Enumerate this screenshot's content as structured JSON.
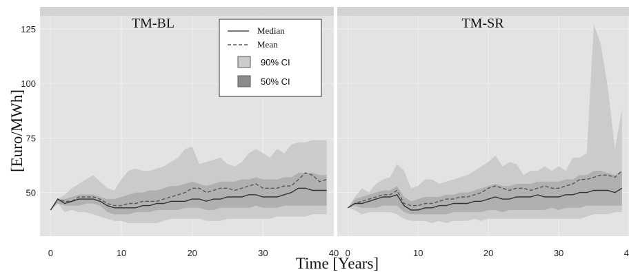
{
  "chart_data": {
    "type": "area",
    "xlabel": "Time [Years]",
    "ylabel": "[Euro/MWh]",
    "x_ticks": [
      0,
      10,
      20,
      30,
      40
    ],
    "x_tick_labels": [
      "0",
      "10",
      "20",
      "30",
      "40"
    ],
    "y_ticks": [
      50,
      75,
      100,
      125
    ],
    "xlim": [
      -1.5,
      40
    ],
    "ylim": [
      30,
      131
    ],
    "legend": {
      "placement": "top-right of left panel",
      "entries": [
        {
          "label": "Median",
          "style": "solid-line"
        },
        {
          "label": "Mean",
          "style": "dashed-line"
        },
        {
          "label": "90% CI",
          "style": "light-fill"
        },
        {
          "label": "50% CI",
          "style": "dark-fill"
        }
      ]
    },
    "colors": {
      "panel_background": "#e3e3e3",
      "strip_background": "#d3d3d3",
      "ci90_fill": "#cbcbcb",
      "ci50_fill": "#b0b0b0",
      "median_line": "#333333",
      "mean_line": "#555555"
    },
    "panels": [
      {
        "title": "TM-BL",
        "x": [
          0,
          1,
          2,
          3,
          4,
          5,
          6,
          7,
          8,
          9,
          10,
          11,
          12,
          13,
          14,
          15,
          16,
          17,
          18,
          19,
          20,
          21,
          22,
          23,
          24,
          25,
          26,
          27,
          28,
          29,
          30,
          31,
          32,
          33,
          34,
          35,
          36,
          37,
          38,
          39
        ],
        "series": [
          {
            "name": "Median",
            "values": [
              42,
              47,
              45,
              46,
              47,
              47,
              47,
              46,
              44,
              43,
              43,
              43,
              43,
              44,
              44,
              45,
              45,
              46,
              46,
              46,
              47,
              47,
              46,
              47,
              47,
              48,
              48,
              48,
              49,
              49,
              48,
              48,
              48,
              49,
              50,
              52,
              52,
              51,
              51,
              51
            ]
          },
          {
            "name": "Mean",
            "values": [
              42,
              47,
              46,
              46,
              48,
              48,
              48,
              47,
              45,
              44,
              44,
              45,
              45,
              46,
              46,
              46,
              47,
              48,
              49,
              50,
              52,
              52,
              50,
              51,
              52,
              52,
              51,
              52,
              53,
              54,
              52,
              52,
              52,
              53,
              53,
              56,
              59,
              58,
              55,
              56
            ]
          },
          {
            "name": "90% CI upper",
            "values": [
              42,
              47,
              49,
              52,
              54,
              56,
              58,
              55,
              52,
              51,
              56,
              60,
              61,
              60,
              60,
              61,
              62,
              64,
              66,
              70,
              71,
              63,
              64,
              65,
              66,
              63,
              62,
              64,
              68,
              70,
              68,
              66,
              70,
              68,
              72,
              73,
              73,
              74,
              74,
              74
            ]
          },
          {
            "name": "90% CI lower",
            "values": [
              42,
              45,
              41,
              42,
              41,
              41,
              40,
              39,
              38,
              37,
              37,
              36,
              36,
              36,
              36,
              36,
              37,
              38,
              38,
              38,
              38,
              38,
              37,
              37,
              37,
              38,
              38,
              38,
              38,
              38,
              38,
              38,
              39,
              39,
              39,
              39,
              39,
              40,
              40,
              40
            ]
          },
          {
            "name": "50% CI upper",
            "values": [
              42,
              47,
              47,
              48,
              49,
              49,
              49,
              48,
              47,
              47,
              48,
              49,
              50,
              50,
              51,
              51,
              52,
              53,
              53,
              54,
              55,
              54,
              53,
              54,
              55,
              55,
              55,
              56,
              56,
              57,
              56,
              56,
              56,
              57,
              57,
              59,
              59,
              59,
              58,
              58
            ]
          },
          {
            "name": "50% CI lower",
            "values": [
              42,
              45,
              44,
              44,
              44,
              45,
              45,
              44,
              41,
              40,
              40,
              40,
              41,
              41,
              41,
              42,
              42,
              42,
              42,
              43,
              43,
              43,
              42,
              42,
              43,
              43,
              43,
              43,
              43,
              44,
              43,
              43,
              43,
              44,
              44,
              44,
              44,
              44,
              44,
              44
            ]
          }
        ]
      },
      {
        "title": "TM-SR",
        "x": [
          0,
          1,
          2,
          3,
          4,
          5,
          6,
          7,
          8,
          9,
          10,
          11,
          12,
          13,
          14,
          15,
          16,
          17,
          18,
          19,
          20,
          21,
          22,
          23,
          24,
          25,
          26,
          27,
          28,
          29,
          30,
          31,
          32,
          33,
          34,
          35,
          36,
          37,
          38,
          39
        ],
        "series": [
          {
            "name": "Median",
            "values": [
              43,
              45,
              45,
              46,
              47,
              48,
              48,
              49,
              44,
              42,
              42,
              43,
              43,
              44,
              44,
              45,
              45,
              45,
              46,
              46,
              47,
              48,
              47,
              47,
              48,
              48,
              48,
              49,
              48,
              48,
              48,
              49,
              49,
              50,
              50,
              51,
              51,
              51,
              50,
              52
            ]
          },
          {
            "name": "Mean",
            "values": [
              43,
              45,
              46,
              47,
              48,
              49,
              49,
              51,
              45,
              44,
              44,
              45,
              45,
              46,
              47,
              47,
              48,
              48,
              49,
              50,
              52,
              53,
              52,
              51,
              52,
              52,
              51,
              52,
              53,
              52,
              52,
              53,
              54,
              56,
              56,
              57,
              58,
              58,
              57,
              60
            ]
          },
          {
            "name": "90% CI upper",
            "values": [
              43,
              48,
              52,
              50,
              54,
              56,
              57,
              63,
              60,
              52,
              53,
              56,
              56,
              54,
              55,
              56,
              57,
              58,
              60,
              62,
              64,
              67,
              62,
              64,
              63,
              58,
              60,
              60,
              62,
              60,
              62,
              60,
              66,
              66,
              68,
              127,
              118,
              98,
              70,
              88
            ]
          },
          {
            "name": "90% CI lower",
            "values": [
              43,
              42,
              40,
              41,
              41,
              41,
              41,
              40,
              38,
              37,
              37,
              37,
              36,
              37,
              36,
              37,
              37,
              37,
              38,
              37,
              38,
              38,
              38,
              38,
              38,
              38,
              38,
              38,
              38,
              38,
              38,
              38,
              38,
              38,
              39,
              40,
              40,
              40,
              41,
              41
            ]
          },
          {
            "name": "50% CI upper",
            "values": [
              43,
              47,
              48,
              49,
              50,
              51,
              51,
              53,
              48,
              46,
              47,
              48,
              48,
              48,
              49,
              49,
              50,
              50,
              51,
              52,
              53,
              54,
              53,
              53,
              54,
              54,
              54,
              55,
              55,
              55,
              55,
              56,
              56,
              58,
              58,
              60,
              60,
              59,
              58,
              60
            ]
          },
          {
            "name": "50% CI lower",
            "values": [
              43,
              44,
              43,
              43,
              43,
              44,
              44,
              44,
              41,
              40,
              40,
              40,
              40,
              40,
              40,
              41,
              41,
              41,
              41,
              41,
              42,
              42,
              41,
              42,
              42,
              42,
              42,
              42,
              42,
              43,
              42,
              43,
              43,
              43,
              44,
              44,
              44,
              44,
              44,
              44
            ]
          }
        ]
      }
    ]
  }
}
